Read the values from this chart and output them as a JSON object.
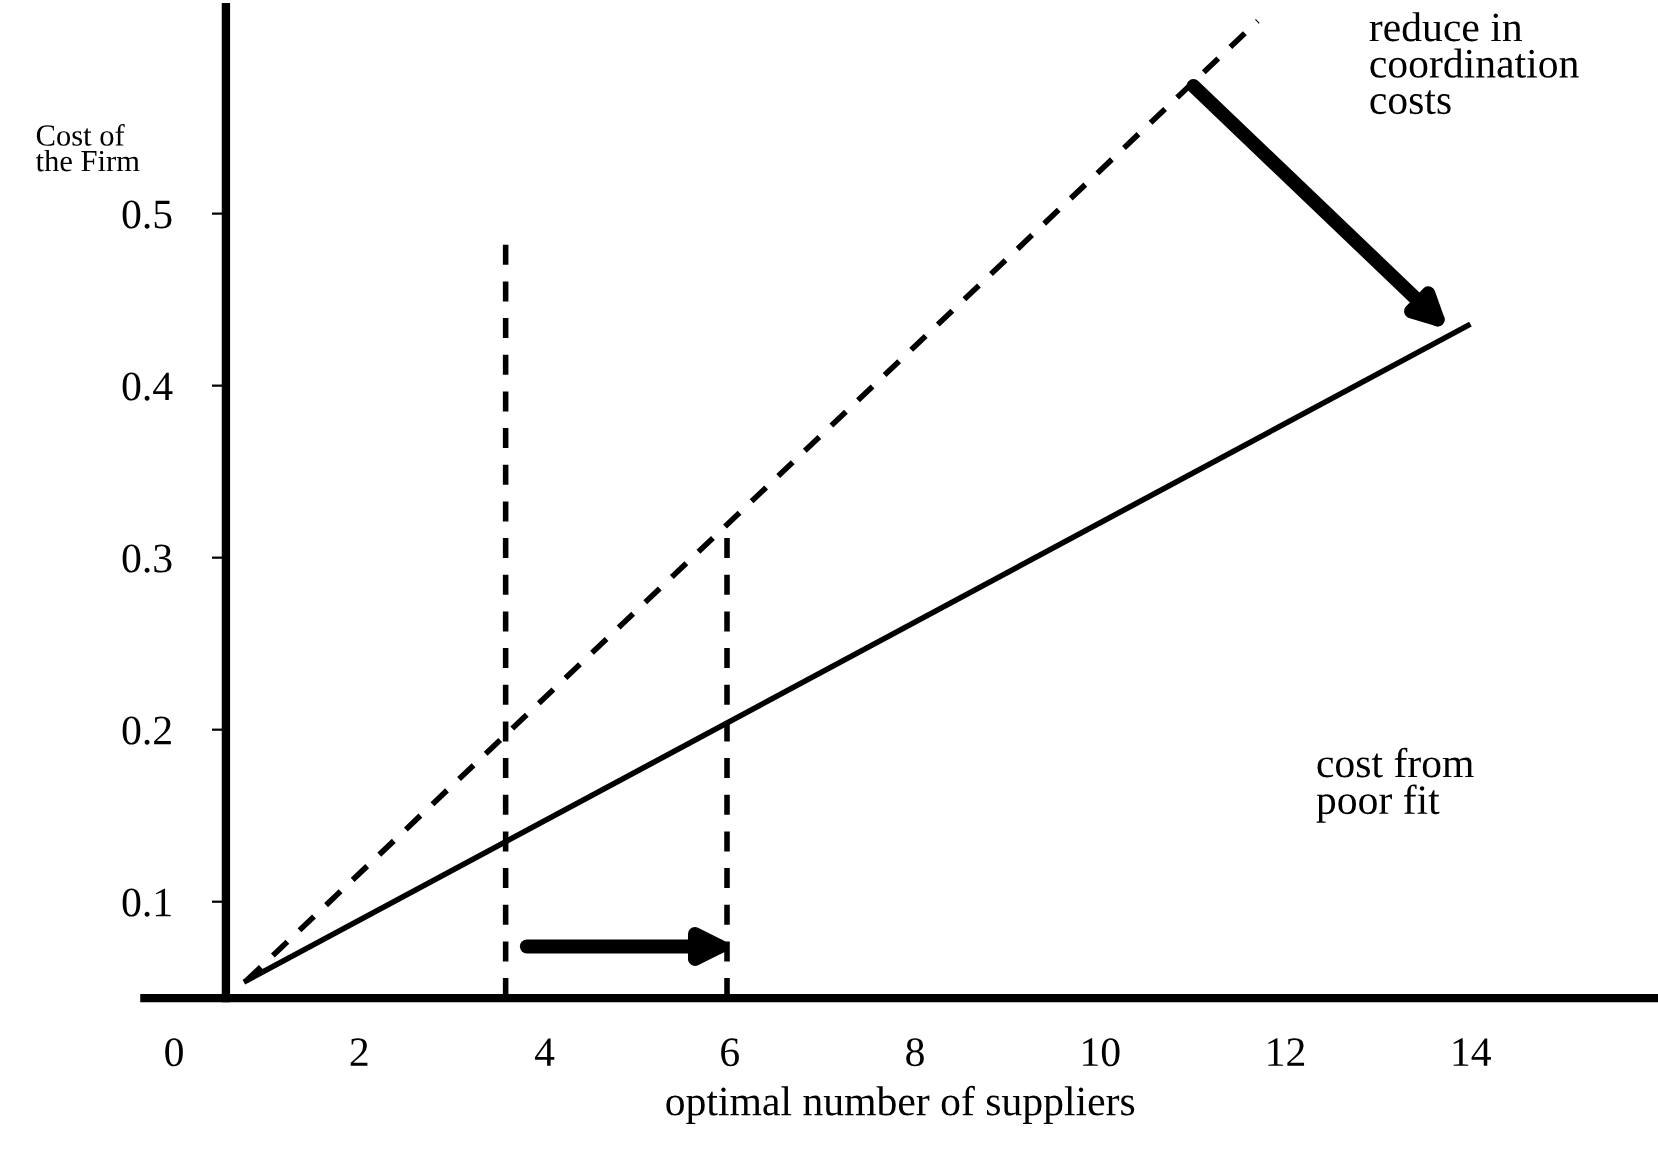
{
  "chart_data": {
    "type": "line",
    "xlabel": "optimal number of suppliers",
    "ylabel": "Cost of\nthe Firm",
    "xlim": [
      -0.32,
      16
    ],
    "ylim": [
      0.044,
      0.62
    ],
    "xticks": [
      0,
      2,
      4,
      6,
      8,
      10,
      12,
      14
    ],
    "yticks": [
      0.1,
      0.2,
      0.3,
      0.4,
      0.5
    ],
    "series": [
      {
        "color": "#000000",
        "line_style": "dashed",
        "x": [
          0.78,
          11.7
        ],
        "values": [
          0.054,
          0.612
        ]
      },
      {
        "color": "#000000",
        "line_style": "solid",
        "x": [
          0.78,
          13.97
        ],
        "values": [
          0.054,
          0.435
        ]
      },
      {
        "color": "#000000",
        "line_style": "dashed",
        "x": [
          3.58,
          3.58
        ],
        "values": [
          0.044,
          0.484
        ]
      },
      {
        "color": "#000000",
        "line_style": "dashed",
        "x": [
          5.97,
          5.97
        ],
        "values": [
          0.044,
          0.319
        ]
      }
    ],
    "annotations": [
      "reduce in\ncoordination\ncosts",
      "cost from\npoor fit"
    ],
    "grid": false,
    "legend": false
  }
}
